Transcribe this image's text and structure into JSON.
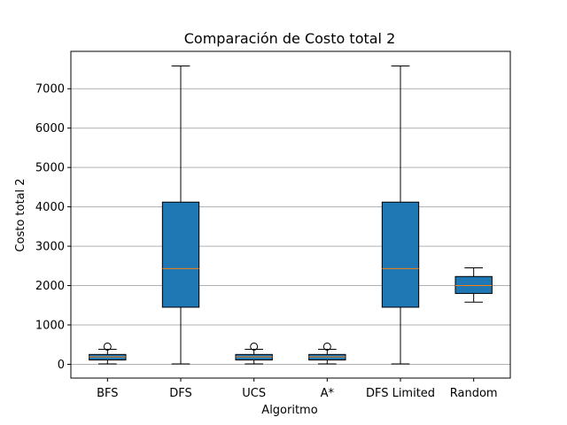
{
  "chart_data": {
    "type": "box",
    "title": "Comparación de Costo total 2",
    "xlabel": "Algoritmo",
    "ylabel": "Costo total 2",
    "ylim": [
      -350,
      7950
    ],
    "yticks": [
      0,
      1000,
      2000,
      3000,
      4000,
      5000,
      6000,
      7000
    ],
    "grid": "horizontal",
    "colors": {
      "box_fill": "#1f77b4",
      "median": "#ff7f0e",
      "grid": "#b0b0b0"
    },
    "categories": [
      "BFS",
      "DFS",
      "UCS",
      "A*",
      "DFS Limited",
      "Random"
    ],
    "boxes": [
      {
        "name": "BFS",
        "whisker_low": 10,
        "q1": 110,
        "median": 190,
        "q3": 250,
        "whisker_high": 380,
        "outliers": [
          450
        ]
      },
      {
        "name": "DFS",
        "whisker_low": 10,
        "q1": 1450,
        "median": 2430,
        "q3": 4120,
        "whisker_high": 7580,
        "outliers": []
      },
      {
        "name": "UCS",
        "whisker_low": 10,
        "q1": 110,
        "median": 190,
        "q3": 250,
        "whisker_high": 380,
        "outliers": [
          450
        ]
      },
      {
        "name": "A*",
        "whisker_low": 10,
        "q1": 110,
        "median": 190,
        "q3": 250,
        "whisker_high": 380,
        "outliers": [
          450
        ]
      },
      {
        "name": "DFS Limited",
        "whisker_low": 10,
        "q1": 1450,
        "median": 2430,
        "q3": 4120,
        "whisker_high": 7580,
        "outliers": []
      },
      {
        "name": "Random",
        "whisker_low": 1580,
        "q1": 1800,
        "median": 2000,
        "q3": 2230,
        "whisker_high": 2450,
        "outliers": []
      }
    ]
  }
}
